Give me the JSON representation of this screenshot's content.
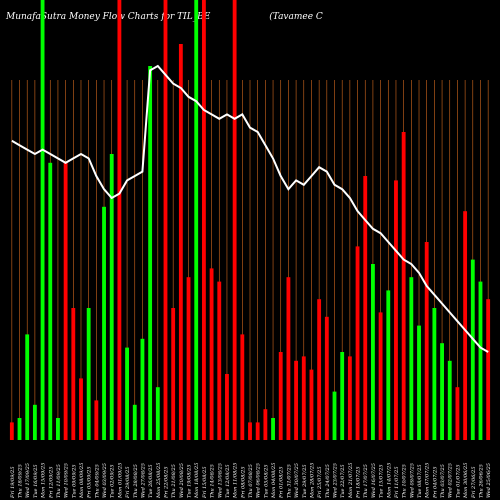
{
  "title": "MunafaSutra  Money Flow  Charts for TIL_BE",
  "title_suffix": "(Tavamee   C",
  "chart_data": {
    "type": "bar",
    "ylim": [
      0,
      100
    ],
    "categories": [
      "Fri 19/09/25",
      "Thu 18/09/25",
      "Wed 17/09/25",
      "Tue 16/09/25",
      "Mon 15/09/25",
      "Fri 12/09/25",
      "Thu 11/09/25",
      "Wed 10/09/25",
      "Tue 09/09/25",
      "Mon 08/09/25",
      "Fri 05/09/25",
      "Thu 04/09/25",
      "Wed 03/09/25",
      "Tue 02/09/25",
      "Mon 01/09/25",
      "Fri 29/08/25",
      "Thu 28/08/25",
      "Wed 27/08/25",
      "Tue 26/08/25",
      "Mon 25/08/25",
      "Fri 22/08/25",
      "Thu 21/08/25",
      "Wed 20/08/25",
      "Tue 19/08/25",
      "Mon 18/08/25",
      "Fri 15/08/25",
      "Thu 14/08/25",
      "Wed 13/08/25",
      "Tue 12/08/25",
      "Mon 11/08/25",
      "Fri 08/08/25",
      "Thu 07/08/25",
      "Wed 06/08/25",
      "Tue 05/08/25",
      "Mon 04/08/25",
      "Fri 01/08/25",
      "Thu 31/07/25",
      "Wed 30/07/25",
      "Tue 29/07/25",
      "Mon 28/07/25",
      "Fri 25/07/25",
      "Thu 24/07/25",
      "Wed 23/07/25",
      "Tue 22/07/25",
      "Mon 21/07/25",
      "Fri 18/07/25",
      "Thu 17/07/25",
      "Wed 16/07/25",
      "Tue 15/07/25",
      "Mon 14/07/25",
      "Fri 11/07/25",
      "Thu 10/07/25",
      "Wed 09/07/25",
      "Tue 08/07/25",
      "Mon 07/07/25",
      "Fri 04/07/25",
      "Thu 03/07/25",
      "Wed 02/07/25",
      "Tue 01/07/25",
      "Mon 30/06/25",
      "Fri 27/06/25",
      "Thu 26/06/25",
      "Wed 25/06/25"
    ],
    "values": [
      4,
      5,
      24,
      8,
      100,
      63,
      5,
      63,
      30,
      14,
      30,
      9,
      53,
      65,
      100,
      21,
      8,
      23,
      85,
      12,
      100,
      30,
      90,
      37,
      100,
      100,
      39,
      36,
      15,
      100,
      24,
      4,
      4,
      7,
      5,
      20,
      37,
      18,
      19,
      16,
      32,
      28,
      11,
      20,
      19,
      44,
      60,
      40,
      29,
      34,
      59,
      70,
      37,
      26,
      45,
      30,
      22,
      18,
      12,
      52,
      41,
      36,
      32
    ],
    "colors": [
      "red",
      "green",
      "green",
      "green",
      "green",
      "green",
      "green",
      "red",
      "red",
      "red",
      "green",
      "red",
      "green",
      "green",
      "red",
      "green",
      "green",
      "green",
      "green",
      "green",
      "red",
      "red",
      "red",
      "red",
      "green",
      "red",
      "red",
      "red",
      "red",
      "red",
      "red",
      "red",
      "red",
      "red",
      "green",
      "red",
      "red",
      "red",
      "red",
      "red",
      "red",
      "red",
      "green",
      "green",
      "red",
      "red",
      "red",
      "green",
      "red",
      "green",
      "red",
      "red",
      "green",
      "green",
      "red",
      "green",
      "green",
      "green",
      "red",
      "red",
      "green",
      "green",
      "red"
    ],
    "line": [
      68,
      67,
      66,
      65,
      66,
      65,
      64,
      63,
      64,
      65,
      64,
      60,
      57,
      55,
      56,
      59,
      60,
      61,
      84,
      85,
      83,
      81,
      80,
      78,
      77,
      75,
      74,
      73,
      74,
      73,
      74,
      71,
      70,
      67,
      64,
      60,
      57,
      59,
      58,
      60,
      62,
      61,
      58,
      57,
      55,
      52,
      50,
      48,
      47,
      45,
      43,
      41,
      40,
      38,
      35,
      33,
      31,
      29,
      27,
      25,
      23,
      21,
      20
    ],
    "series_colors": {
      "green": "#00ff00",
      "red": "#ff0000"
    },
    "gridline_color": "#d2691e",
    "line_color": "#ffffff",
    "grid": true
  }
}
